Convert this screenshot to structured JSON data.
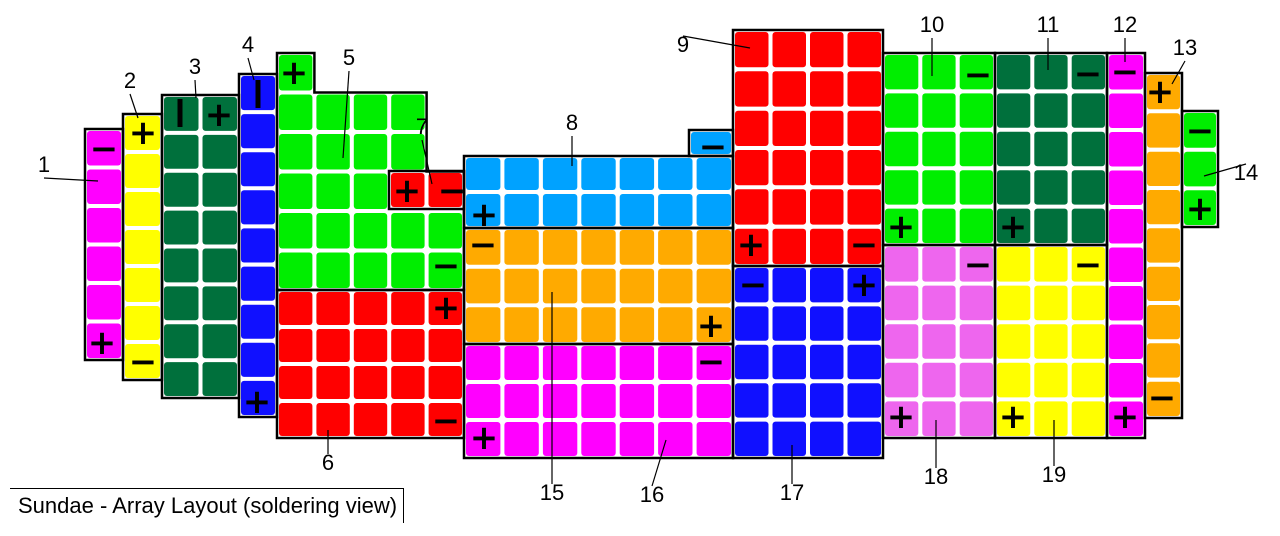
{
  "title": "Sundae - Array Layout (soldering view)",
  "plus_symbol": "+",
  "minus_symbol": "−",
  "blocks": [
    {
      "label": "1",
      "color": "#ff00ff"
    },
    {
      "label": "2",
      "color": "#ffff00"
    },
    {
      "label": "3",
      "color": "#00703c"
    },
    {
      "label": "4",
      "color": "#1010ff"
    },
    {
      "label": "5",
      "color": "#00ee00"
    },
    {
      "label": "6",
      "color": "#ff0000"
    },
    {
      "label": "7",
      "color": "#ff0000"
    },
    {
      "label": "8",
      "color": "#00a2ff"
    },
    {
      "label": "9",
      "color": "#ff0000"
    },
    {
      "label": "10",
      "color": "#00ee00"
    },
    {
      "label": "11",
      "color": "#00703c"
    },
    {
      "label": "12",
      "color": "#ff00ff"
    },
    {
      "label": "13",
      "color": "#ffaa00"
    },
    {
      "label": "14",
      "color": "#00ee00"
    },
    {
      "label": "15",
      "color": "#ffaa00"
    },
    {
      "label": "16",
      "color": "#ff00ff"
    },
    {
      "label": "17",
      "color": "#1010ff"
    },
    {
      "label": "18",
      "color": "#ee66ee"
    },
    {
      "label": "19",
      "color": "#ffff00"
    }
  ]
}
